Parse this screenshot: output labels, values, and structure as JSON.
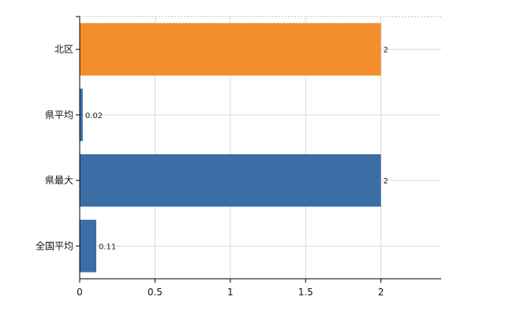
{
  "chart_data": {
    "type": "bar",
    "orientation": "horizontal",
    "categories": [
      "北区",
      "県平均",
      "県最大",
      "全国平均"
    ],
    "values": [
      2,
      0.02,
      2,
      0.11
    ],
    "data_labels": [
      "2",
      "0.02",
      "2",
      "0.11"
    ],
    "bar_colors": [
      "#f28e2b",
      "#3a6ea5",
      "#3a6ea5",
      "#3a6ea5"
    ],
    "xlim": [
      0,
      2.4
    ],
    "x_ticks": [
      0,
      0.5,
      1,
      1.5,
      2
    ],
    "x_tick_labels": [
      "0",
      "0.5",
      "1",
      "1.5",
      "2"
    ],
    "grid": true,
    "title": "",
    "xlabel": "",
    "ylabel": ""
  }
}
